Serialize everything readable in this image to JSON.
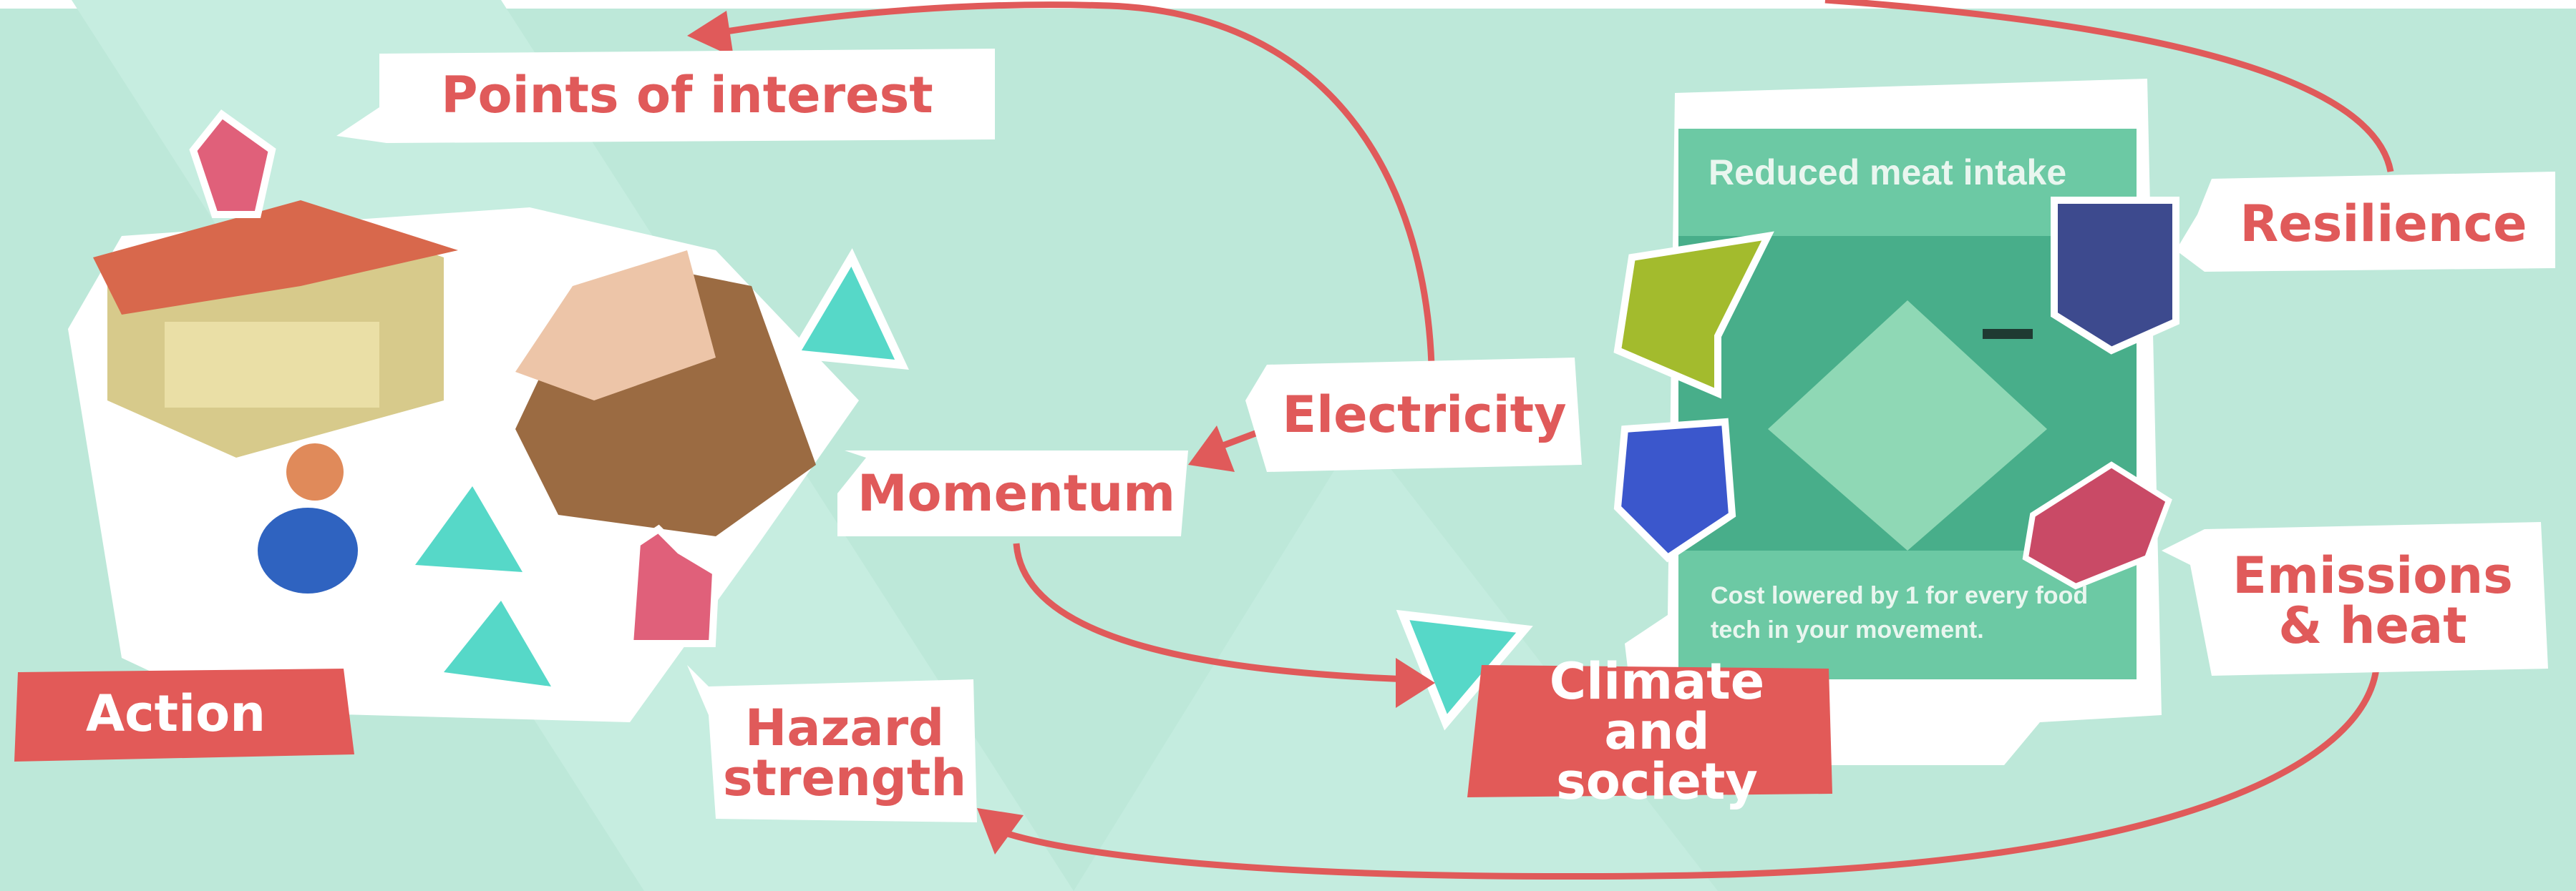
{
  "labels": {
    "points_of_interest": "Points of interest",
    "action": "Action",
    "hazard_strength": "Hazard strength",
    "momentum": "Momentum",
    "electricity": "Electricity",
    "climate_and_society": "Climate and society",
    "resilience": "Resilience",
    "emissions_and_heat": "Emissions & heat"
  },
  "card": {
    "title": "Reduced meat intake",
    "text": "Cost lowered by 1 for every food tech in your movement."
  }
}
